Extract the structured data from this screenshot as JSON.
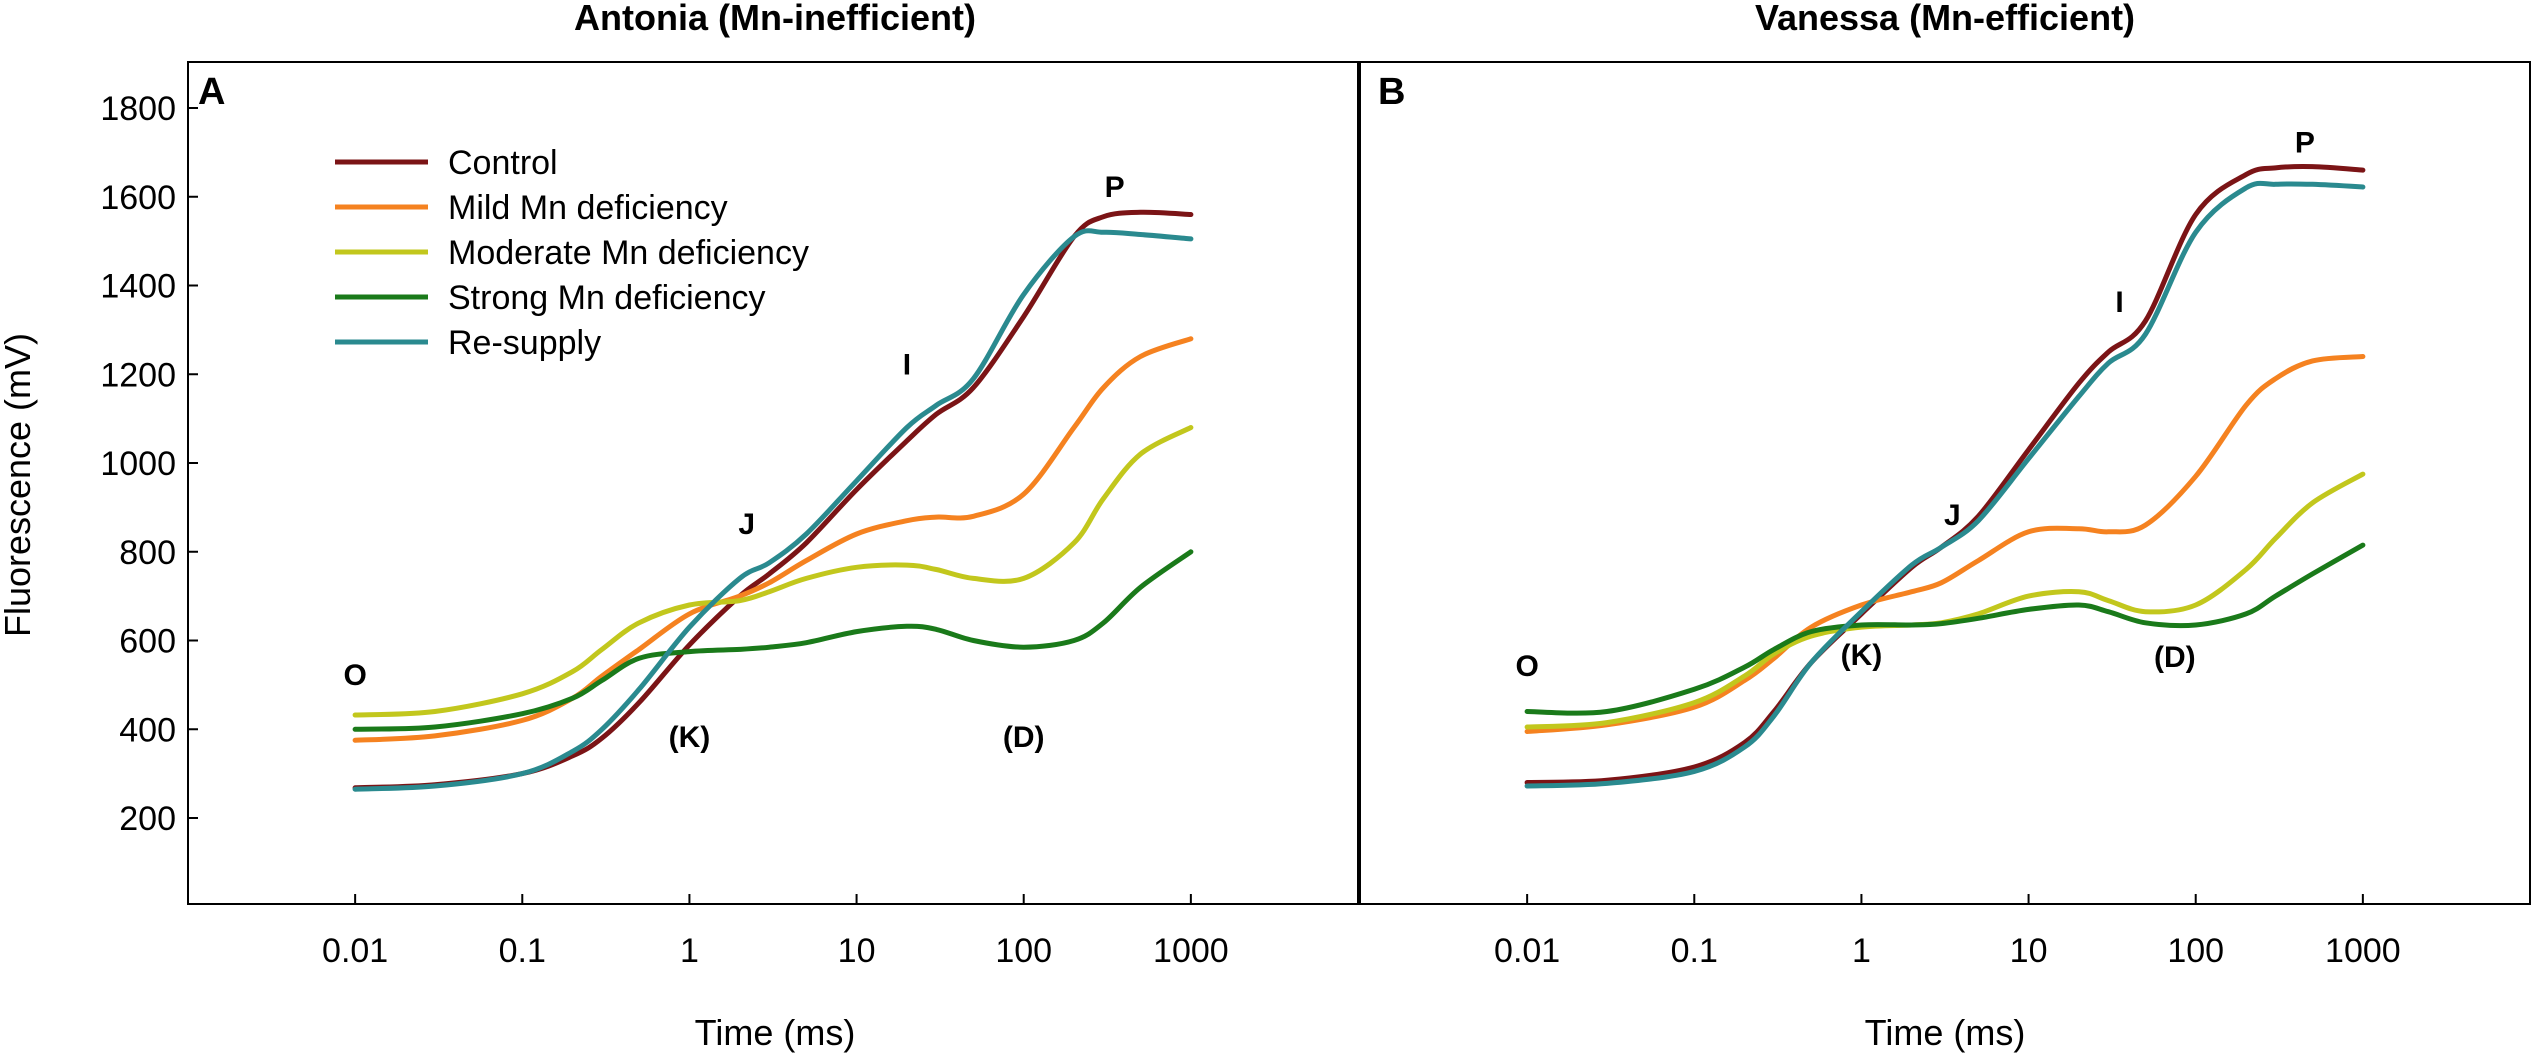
{
  "figure": {
    "ylabel": "Fluorescence (mV)"
  },
  "legend": [
    {
      "name": "Control",
      "color": "#7B1416"
    },
    {
      "name": "Mild Mn deficiency",
      "color": "#F58220"
    },
    {
      "name": "Moderate Mn deficiency",
      "color": "#C2C71D"
    },
    {
      "name": "Strong Mn deficiency",
      "color": "#1A7A1A"
    },
    {
      "name": "Re-supply",
      "color": "#2A8A8F"
    }
  ],
  "chart_data": [
    {
      "type": "line",
      "panel": "A",
      "title": "Antonia (Mn-inefficient)",
      "xlabel": "Time (ms)",
      "ylabel": "Fluorescence (mV)",
      "xscale": "log",
      "xlim": [
        0.001,
        10000
      ],
      "ylim": [
        0,
        1850
      ],
      "xticks": [
        "0.01",
        "0.1",
        "1",
        "10",
        "100",
        "1000"
      ],
      "yticks": [
        "200",
        "400",
        "600",
        "800",
        "1000",
        "1200",
        "1400",
        "1600",
        "1800"
      ],
      "legend_position": "top-left",
      "annotations": [
        {
          "text": "O",
          "x": 0.01,
          "y": 500
        },
        {
          "text": "(K)",
          "x": 1.0,
          "y": 360
        },
        {
          "text": "J",
          "x": 2.2,
          "y": 840
        },
        {
          "text": "I",
          "x": 20,
          "y": 1200
        },
        {
          "text": "(D)",
          "x": 100,
          "y": 360
        },
        {
          "text": "P",
          "x": 350,
          "y": 1600
        }
      ],
      "series": [
        {
          "name": "Control",
          "x": [
            0.01,
            0.03,
            0.1,
            0.2,
            0.3,
            0.5,
            1,
            2,
            3,
            5,
            10,
            20,
            30,
            50,
            100,
            200,
            300,
            500,
            1000
          ],
          "y": [
            268,
            275,
            300,
            340,
            380,
            460,
            590,
            700,
            750,
            820,
            940,
            1050,
            1110,
            1170,
            1330,
            1510,
            1555,
            1565,
            1560
          ]
        },
        {
          "name": "Mild Mn deficiency",
          "x": [
            0.01,
            0.03,
            0.1,
            0.2,
            0.3,
            0.5,
            1,
            2,
            3,
            5,
            10,
            20,
            30,
            50,
            100,
            200,
            300,
            500,
            1000
          ],
          "y": [
            375,
            385,
            420,
            470,
            520,
            580,
            660,
            700,
            730,
            780,
            840,
            870,
            878,
            880,
            930,
            1080,
            1170,
            1240,
            1280
          ]
        },
        {
          "name": "Moderate Mn deficiency",
          "x": [
            0.01,
            0.03,
            0.1,
            0.2,
            0.3,
            0.5,
            1,
            2,
            3,
            5,
            10,
            20,
            30,
            50,
            100,
            200,
            300,
            500,
            1000
          ],
          "y": [
            432,
            440,
            480,
            530,
            580,
            640,
            680,
            690,
            710,
            740,
            765,
            770,
            760,
            740,
            740,
            820,
            920,
            1020,
            1080
          ]
        },
        {
          "name": "Strong Mn deficiency",
          "x": [
            0.01,
            0.03,
            0.1,
            0.2,
            0.3,
            0.5,
            1,
            2,
            3,
            5,
            10,
            20,
            30,
            50,
            100,
            200,
            300,
            500,
            1000
          ],
          "y": [
            400,
            405,
            435,
            470,
            510,
            560,
            575,
            580,
            585,
            595,
            620,
            632,
            625,
            600,
            585,
            600,
            640,
            720,
            800
          ]
        },
        {
          "name": "Re-supply",
          "x": [
            0.01,
            0.03,
            0.1,
            0.2,
            0.3,
            0.5,
            1,
            2,
            3,
            5,
            10,
            20,
            30,
            50,
            100,
            200,
            300,
            500,
            1000
          ],
          "y": [
            265,
            272,
            300,
            350,
            400,
            490,
            630,
            740,
            775,
            840,
            960,
            1080,
            1130,
            1190,
            1380,
            1510,
            1520,
            1515,
            1505
          ]
        }
      ]
    },
    {
      "type": "line",
      "panel": "B",
      "title": "Vanessa (Mn-efficient)",
      "xlabel": "Time (ms)",
      "ylabel": "Fluorescence (mV)",
      "xscale": "log",
      "xlim": [
        0.001,
        10000
      ],
      "ylim": [
        0,
        1850
      ],
      "xticks": [
        "0.01",
        "0.1",
        "1",
        "10",
        "100",
        "1000"
      ],
      "yticks": [
        "200",
        "400",
        "600",
        "800",
        "1000",
        "1200",
        "1400",
        "1600",
        "1800"
      ],
      "annotations": [
        {
          "text": "O",
          "x": 0.01,
          "y": 520
        },
        {
          "text": "(K)",
          "x": 1.0,
          "y": 545
        },
        {
          "text": "J",
          "x": 3.5,
          "y": 860
        },
        {
          "text": "I",
          "x": 35,
          "y": 1340
        },
        {
          "text": "(D)",
          "x": 75,
          "y": 540
        },
        {
          "text": "P",
          "x": 450,
          "y": 1700
        }
      ],
      "series": [
        {
          "name": "Control",
          "x": [
            0.01,
            0.03,
            0.1,
            0.2,
            0.3,
            0.5,
            1,
            2,
            3,
            5,
            10,
            20,
            30,
            50,
            100,
            200,
            300,
            500,
            1000
          ],
          "y": [
            280,
            285,
            315,
            370,
            440,
            550,
            660,
            765,
            810,
            880,
            1030,
            1180,
            1250,
            1320,
            1560,
            1650,
            1665,
            1668,
            1660
          ]
        },
        {
          "name": "Mild Mn deficiency",
          "x": [
            0.01,
            0.03,
            0.1,
            0.2,
            0.3,
            0.5,
            1,
            2,
            3,
            5,
            10,
            20,
            30,
            50,
            100,
            200,
            300,
            500,
            1000
          ],
          "y": [
            395,
            410,
            450,
            510,
            560,
            630,
            680,
            710,
            730,
            780,
            845,
            852,
            845,
            860,
            970,
            1130,
            1190,
            1230,
            1240
          ]
        },
        {
          "name": "Moderate Mn deficiency",
          "x": [
            0.01,
            0.03,
            0.1,
            0.2,
            0.3,
            0.5,
            1,
            2,
            3,
            5,
            10,
            20,
            30,
            50,
            100,
            200,
            300,
            500,
            1000
          ],
          "y": [
            405,
            415,
            460,
            520,
            570,
            610,
            630,
            635,
            640,
            660,
            700,
            710,
            690,
            665,
            680,
            760,
            830,
            910,
            975
          ]
        },
        {
          "name": "Strong Mn deficiency",
          "x": [
            0.01,
            0.03,
            0.1,
            0.2,
            0.3,
            0.5,
            1,
            2,
            3,
            5,
            10,
            20,
            30,
            50,
            100,
            200,
            300,
            500,
            1000
          ],
          "y": [
            440,
            440,
            490,
            540,
            580,
            620,
            635,
            635,
            638,
            650,
            670,
            680,
            665,
            640,
            635,
            660,
            700,
            750,
            815
          ]
        },
        {
          "name": "Re-supply",
          "x": [
            0.01,
            0.03,
            0.1,
            0.2,
            0.3,
            0.5,
            1,
            2,
            3,
            5,
            10,
            20,
            30,
            50,
            100,
            200,
            300,
            500,
            1000
          ],
          "y": [
            272,
            278,
            305,
            360,
            430,
            550,
            665,
            770,
            810,
            870,
            1010,
            1150,
            1225,
            1290,
            1520,
            1620,
            1628,
            1628,
            1622
          ]
        }
      ]
    }
  ]
}
